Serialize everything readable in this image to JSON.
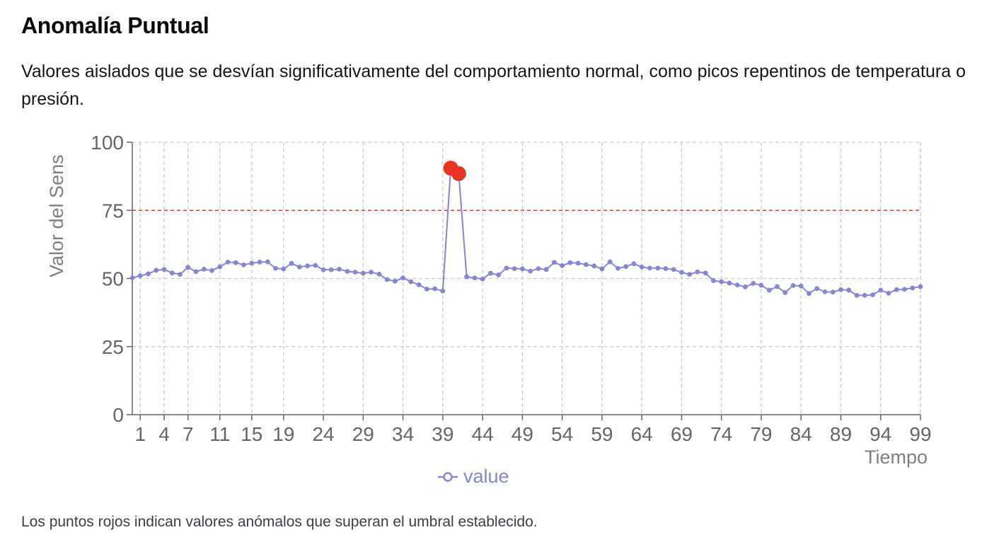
{
  "title": "Anomalía Puntual",
  "description": "Valores aislados que se desvían significativamente del comportamiento normal, como picos repentinos de temperatura o presión.",
  "note": "Los puntos rojos indican valores anómalos que superan el umbral establecido.",
  "colors": {
    "line": "#8884d8",
    "anomaly": "#ea3323",
    "threshold": "#e03a2f",
    "grid": "#cccccc",
    "axis": "#666666"
  },
  "chart_data": {
    "type": "line",
    "xlabel": "Tiempo",
    "ylabel": "Valor del Sens",
    "xlim": [
      0,
      99
    ],
    "ylim": [
      0,
      100
    ],
    "yticks": [
      0,
      25,
      50,
      75,
      100
    ],
    "xticks": [
      1,
      4,
      7,
      11,
      15,
      19,
      24,
      29,
      34,
      39,
      44,
      49,
      54,
      59,
      64,
      69,
      74,
      79,
      84,
      89,
      94,
      99
    ],
    "grid": true,
    "legend": "bottom-center",
    "threshold": 75,
    "series": [
      {
        "name": "value",
        "x": [
          0,
          1,
          2,
          3,
          4,
          5,
          6,
          7,
          8,
          9,
          10,
          11,
          12,
          13,
          14,
          15,
          16,
          17,
          18,
          19,
          20,
          21,
          22,
          23,
          24,
          25,
          26,
          27,
          28,
          29,
          30,
          31,
          32,
          33,
          34,
          35,
          36,
          37,
          38,
          39,
          40,
          41,
          42,
          43,
          44,
          45,
          46,
          47,
          48,
          49,
          50,
          51,
          52,
          53,
          54,
          55,
          56,
          57,
          58,
          59,
          60,
          61,
          62,
          63,
          64,
          65,
          66,
          67,
          68,
          69,
          70,
          71,
          72,
          73,
          74,
          75,
          76,
          77,
          78,
          79,
          80,
          81,
          82,
          83,
          84,
          85,
          86,
          87,
          88,
          89,
          90,
          91,
          92,
          93,
          94,
          95,
          96,
          97,
          98,
          99
        ],
        "values": [
          50.2,
          51.0,
          51.7,
          53.0,
          53.3,
          52.0,
          51.5,
          54.1,
          52.5,
          53.4,
          52.9,
          54.3,
          56.0,
          55.8,
          55.0,
          55.6,
          56.0,
          56.1,
          53.7,
          53.5,
          55.5,
          54.2,
          54.6,
          54.8,
          53.2,
          53.2,
          53.4,
          52.6,
          52.3,
          51.9,
          52.3,
          51.6,
          49.6,
          49.0,
          50.2,
          48.8,
          47.7,
          46.1,
          46.2,
          45.4,
          90.5,
          88.5,
          50.6,
          50.2,
          49.8,
          51.9,
          51.3,
          53.8,
          53.6,
          53.5,
          52.7,
          53.6,
          53.3,
          55.9,
          54.7,
          55.8,
          55.6,
          55.1,
          54.6,
          53.5,
          56.1,
          53.7,
          54.4,
          55.4,
          54.2,
          53.8,
          53.8,
          53.6,
          53.3,
          52.2,
          51.5,
          52.4,
          52.0,
          49.2,
          48.8,
          48.3,
          47.6,
          46.9,
          48.2,
          47.5,
          45.7,
          47.0,
          44.8,
          47.4,
          47.2,
          44.5,
          46.3,
          45.1,
          45.0,
          45.9,
          45.7,
          43.8,
          43.8,
          44.0,
          45.7,
          44.6,
          45.9,
          46.0,
          46.5,
          47.0
        ]
      }
    ],
    "anomalies": [
      {
        "x": 40,
        "y": 90.5
      },
      {
        "x": 41,
        "y": 88.5
      }
    ]
  }
}
